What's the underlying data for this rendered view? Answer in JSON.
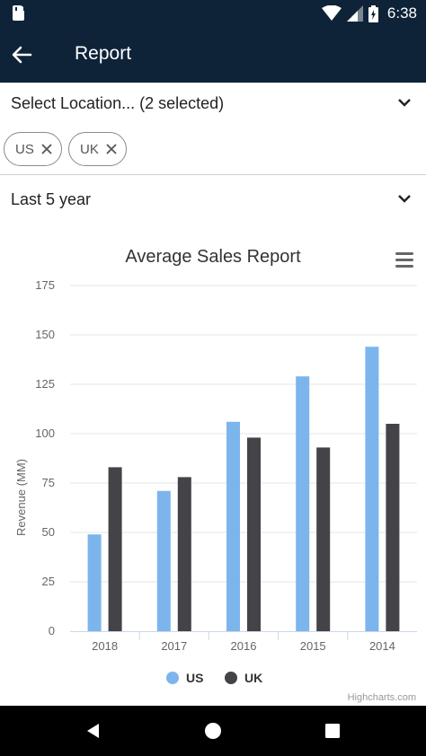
{
  "status_bar": {
    "time": "6:38"
  },
  "app_bar": {
    "title": "Report"
  },
  "location_selector": {
    "label": "Select Location... (2 selected)"
  },
  "chips": [
    {
      "label": "US"
    },
    {
      "label": "UK"
    }
  ],
  "period_selector": {
    "label": "Last 5 year"
  },
  "chart_data": {
    "type": "bar",
    "title": "Average Sales Report",
    "ylabel": "Revenue (MM)",
    "xlabel": "",
    "categories": [
      "2018",
      "2017",
      "2016",
      "2015",
      "2014"
    ],
    "series": [
      {
        "name": "US",
        "color": "#7cb5ec",
        "values": [
          49,
          71,
          106,
          129,
          144
        ]
      },
      {
        "name": "UK",
        "color": "#434348",
        "values": [
          83,
          78,
          98,
          93,
          105
        ]
      }
    ],
    "ylim": [
      0,
      175
    ],
    "yticks": [
      0,
      25,
      50,
      75,
      100,
      125,
      150,
      175
    ],
    "grid": true,
    "legend": "bottom-center",
    "credits": "Highcharts.com"
  }
}
